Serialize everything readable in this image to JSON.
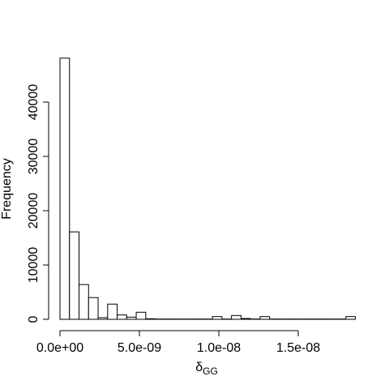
{
  "chart_data": {
    "type": "bar",
    "title": "",
    "xlabel": "δ",
    "xlabel_subscript": "GG",
    "ylabel": "Frequency",
    "bin_width": 6e-10,
    "bins": [
      {
        "x0": 0.0,
        "x1": 6e-10,
        "count": 48100
      },
      {
        "x0": 6e-10,
        "x1": 1.2e-09,
        "count": 16100
      },
      {
        "x0": 1.2e-09,
        "x1": 1.8e-09,
        "count": 6400
      },
      {
        "x0": 1.8e-09,
        "x1": 2.4e-09,
        "count": 4000
      },
      {
        "x0": 2.4e-09,
        "x1": 3e-09,
        "count": 300
      },
      {
        "x0": 3e-09,
        "x1": 3.6e-09,
        "count": 2800
      },
      {
        "x0": 3.6e-09,
        "x1": 4.2e-09,
        "count": 800
      },
      {
        "x0": 4.2e-09,
        "x1": 4.8e-09,
        "count": 400
      },
      {
        "x0": 4.8e-09,
        "x1": 5.4e-09,
        "count": 1300
      },
      {
        "x0": 5.4e-09,
        "x1": 6e-09,
        "count": 100
      },
      {
        "x0": 6e-09,
        "x1": 6.6e-09,
        "count": 50
      },
      {
        "x0": 6.6e-09,
        "x1": 7.2e-09,
        "count": 50
      },
      {
        "x0": 7.2e-09,
        "x1": 7.8e-09,
        "count": 50
      },
      {
        "x0": 7.8e-09,
        "x1": 8.4e-09,
        "count": 50
      },
      {
        "x0": 8.4e-09,
        "x1": 9e-09,
        "count": 50
      },
      {
        "x0": 9e-09,
        "x1": 9.6e-09,
        "count": 50
      },
      {
        "x0": 9.6e-09,
        "x1": 1.02e-08,
        "count": 500
      },
      {
        "x0": 1.02e-08,
        "x1": 1.08e-08,
        "count": 50
      },
      {
        "x0": 1.08e-08,
        "x1": 1.14e-08,
        "count": 700
      },
      {
        "x0": 1.14e-08,
        "x1": 1.2e-08,
        "count": 150
      },
      {
        "x0": 1.2e-08,
        "x1": 1.26e-08,
        "count": 50
      },
      {
        "x0": 1.26e-08,
        "x1": 1.32e-08,
        "count": 500
      },
      {
        "x0": 1.32e-08,
        "x1": 1.38e-08,
        "count": 50
      },
      {
        "x0": 1.38e-08,
        "x1": 1.44e-08,
        "count": 50
      },
      {
        "x0": 1.44e-08,
        "x1": 1.5e-08,
        "count": 50
      },
      {
        "x0": 1.5e-08,
        "x1": 1.56e-08,
        "count": 50
      },
      {
        "x0": 1.56e-08,
        "x1": 1.62e-08,
        "count": 50
      },
      {
        "x0": 1.62e-08,
        "x1": 1.68e-08,
        "count": 50
      },
      {
        "x0": 1.68e-08,
        "x1": 1.74e-08,
        "count": 50
      },
      {
        "x0": 1.74e-08,
        "x1": 1.8e-08,
        "count": 50
      },
      {
        "x0": 1.8e-08,
        "x1": 1.86e-08,
        "count": 500
      }
    ],
    "x_ticks": [
      {
        "value": 0.0,
        "label": "0.0e+00"
      },
      {
        "value": 5e-09,
        "label": "5.0e-09"
      },
      {
        "value": 1e-08,
        "label": "1.0e-08"
      },
      {
        "value": 1.5e-08,
        "label": "1.5e-08"
      }
    ],
    "y_ticks": [
      {
        "value": 0,
        "label": "0"
      },
      {
        "value": 10000,
        "label": "10000"
      },
      {
        "value": 20000,
        "label": "20000"
      },
      {
        "value": 30000,
        "label": "30000"
      },
      {
        "value": 40000,
        "label": "40000"
      }
    ],
    "xlim": [
      0.0,
      1.86e-08
    ],
    "ylim": [
      0,
      48100
    ],
    "grid": false,
    "legend": "none",
    "colors": {
      "bar_fill": "#ffffff",
      "bar_stroke": "#000000"
    }
  }
}
